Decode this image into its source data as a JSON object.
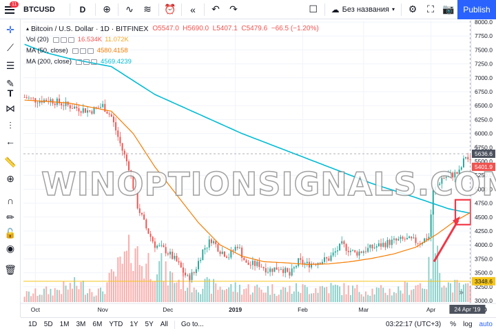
{
  "topbar": {
    "badge": "11",
    "symbol": "BTCUSD",
    "interval": "D",
    "layout_name": "Без названия",
    "publish_label": "Publish"
  },
  "legend": {
    "title": "Bitcoin / U.S. Dollar · 1D · BITFINEX",
    "ohlc": "O5547.0  H5690.0  L5407.1  C5479.6  −66.5 (−1.20%)",
    "vol_name": "Vol (20)",
    "vol_values": [
      "16.534K",
      "11.072K"
    ],
    "ma50_name": "MA (50, close)",
    "ma50_value": "4580.4158",
    "ma200_name": "MA (200, close)",
    "ma200_value": "4569.4239"
  },
  "watermark": "WINOPTIONSIGNALS.COM",
  "bottombar": {
    "timeframes": [
      "1D",
      "5D",
      "1M",
      "3M",
      "6M",
      "YTD",
      "1Y",
      "5Y",
      "All"
    ],
    "goto": "Go to...",
    "clock": "03:22:17 (UTC+3)",
    "percent": "%",
    "log": "log",
    "auto": "auto"
  },
  "colors": {
    "up": "#26a69a",
    "down": "#ef5350",
    "ma50": "#f57c00",
    "ma200": "#00bcd4",
    "accent": "#2962ff",
    "annotation": "#f23645"
  },
  "chart_data": {
    "type": "candlestick",
    "y_ticks": [
      "8000.0",
      "7750.0",
      "7500.0",
      "7250.0",
      "7000.0",
      "6750.0",
      "6500.0",
      "6250.0",
      "6000.0",
      "5750.0",
      "5500.0",
      "5250.0",
      "5000.0",
      "4750.0",
      "4500.0",
      "4250.0",
      "4000.0",
      "3750.0",
      "3500.0",
      "3250.0",
      "3000.0"
    ],
    "ylim": [
      3000,
      8000
    ],
    "x_labels": [
      "Oct",
      "Nov",
      "Dec",
      "2019",
      "Feb",
      "Mar",
      "Apr"
    ],
    "x_label_index": [
      5,
      36,
      66,
      97,
      128,
      156,
      187
    ],
    "n_bars": 206,
    "price_labels": {
      "crosshair": "5636.6",
      "last": "5401.9",
      "volume_line": "3348.6",
      "date": "24 Apr '19"
    },
    "volume_line_value": 3348.6,
    "crosshair_value": 5636.6,
    "last_value": 5401.9,
    "close_anchors": [
      [
        0,
        6650
      ],
      [
        5,
        6600
      ],
      [
        12,
        6600
      ],
      [
        20,
        6500
      ],
      [
        30,
        6400
      ],
      [
        36,
        6500
      ],
      [
        40,
        6300
      ],
      [
        45,
        5700
      ],
      [
        48,
        5400
      ],
      [
        52,
        4700
      ],
      [
        56,
        4300
      ],
      [
        60,
        4000
      ],
      [
        65,
        3900
      ],
      [
        70,
        3700
      ],
      [
        75,
        3400
      ],
      [
        78,
        3500
      ],
      [
        82,
        3900
      ],
      [
        86,
        4100
      ],
      [
        90,
        3900
      ],
      [
        94,
        3800
      ],
      [
        98,
        4000
      ],
      [
        102,
        3650
      ],
      [
        108,
        3650
      ],
      [
        112,
        3550
      ],
      [
        118,
        3600
      ],
      [
        122,
        3450
      ],
      [
        126,
        3700
      ],
      [
        130,
        3650
      ],
      [
        140,
        3750
      ],
      [
        146,
        4000
      ],
      [
        152,
        3850
      ],
      [
        160,
        3950
      ],
      [
        168,
        4050
      ],
      [
        175,
        4100
      ],
      [
        182,
        4050
      ],
      [
        186,
        4150
      ],
      [
        188,
        4950
      ],
      [
        192,
        5200
      ],
      [
        196,
        5250
      ],
      [
        200,
        5300
      ],
      [
        203,
        5600
      ],
      [
        205,
        5480
      ]
    ],
    "ma50_anchors": [
      [
        0,
        6600
      ],
      [
        20,
        6550
      ],
      [
        40,
        6400
      ],
      [
        50,
        6000
      ],
      [
        60,
        5400
      ],
      [
        70,
        4900
      ],
      [
        80,
        4400
      ],
      [
        90,
        4000
      ],
      [
        100,
        3800
      ],
      [
        110,
        3700
      ],
      [
        120,
        3680
      ],
      [
        130,
        3650
      ],
      [
        140,
        3660
      ],
      [
        150,
        3700
      ],
      [
        160,
        3760
      ],
      [
        170,
        3840
      ],
      [
        180,
        3960
      ],
      [
        190,
        4200
      ],
      [
        197,
        4400
      ],
      [
        205,
        4580
      ]
    ],
    "ma200_anchors": [
      [
        0,
        7600
      ],
      [
        10,
        7450
      ],
      [
        20,
        7350
      ],
      [
        40,
        7200
      ],
      [
        60,
        6700
      ],
      [
        80,
        6350
      ],
      [
        100,
        6000
      ],
      [
        120,
        5700
      ],
      [
        140,
        5400
      ],
      [
        160,
        5100
      ],
      [
        180,
        4850
      ],
      [
        195,
        4650
      ],
      [
        205,
        4570
      ]
    ],
    "volume_anchors": [
      [
        0,
        0.15
      ],
      [
        15,
        0.25
      ],
      [
        25,
        0.35
      ],
      [
        35,
        0.2
      ],
      [
        50,
        1.0
      ],
      [
        55,
        0.75
      ],
      [
        60,
        0.85
      ],
      [
        65,
        0.55
      ],
      [
        70,
        0.45
      ],
      [
        80,
        0.35
      ],
      [
        90,
        0.3
      ],
      [
        100,
        0.28
      ],
      [
        120,
        0.25
      ],
      [
        140,
        0.3
      ],
      [
        150,
        0.25
      ],
      [
        170,
        0.22
      ],
      [
        185,
        0.4
      ],
      [
        188,
        1.0
      ],
      [
        195,
        0.35
      ],
      [
        205,
        0.25
      ]
    ]
  }
}
